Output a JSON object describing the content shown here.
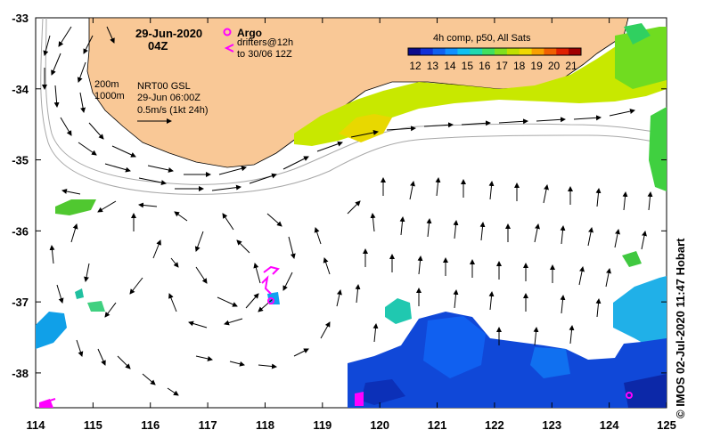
{
  "map": {
    "date": "29-Jun-2020",
    "hour": "04Z",
    "legend_argo": "Argo",
    "legend_drifters_line1": "drifters@12h",
    "legend_drifters_line2": "to 30/06 12Z",
    "depth_200": "200m",
    "depth_1000": "1000m",
    "altimetry_source": "NRT00 GSL",
    "altimetry_time": "29-Jun 06:00Z",
    "scale_arrow_label": "0.5m/s (1kt 24h)",
    "sst_title": "4h comp, p50, All Sats",
    "credit": "© IMOS 02-Jul-2020 11:47 Hobart",
    "colors": {
      "land": "#f9c896",
      "argo": "#ff00ff",
      "drifter": "#ff00ff",
      "isobath": "#a8a8a8"
    }
  },
  "colorbar": {
    "tick_labels": [
      "12",
      "13",
      "14",
      "15",
      "16",
      "17",
      "18",
      "19",
      "20",
      "21"
    ],
    "colors": [
      "#0b0b8c",
      "#1030d8",
      "#1060f0",
      "#1090ff",
      "#10c0f0",
      "#20d8b0",
      "#40e060",
      "#80e020",
      "#c0e000",
      "#f0d800",
      "#f8a000",
      "#f06000",
      "#e02000",
      "#a00000"
    ]
  },
  "axes": {
    "x_ticks": [
      "114",
      "115",
      "116",
      "117",
      "118",
      "119",
      "120",
      "121",
      "122",
      "123",
      "124",
      "125"
    ],
    "y_ticks": [
      "-33",
      "-34",
      "-35",
      "-36",
      "-37",
      "-38"
    ]
  }
}
